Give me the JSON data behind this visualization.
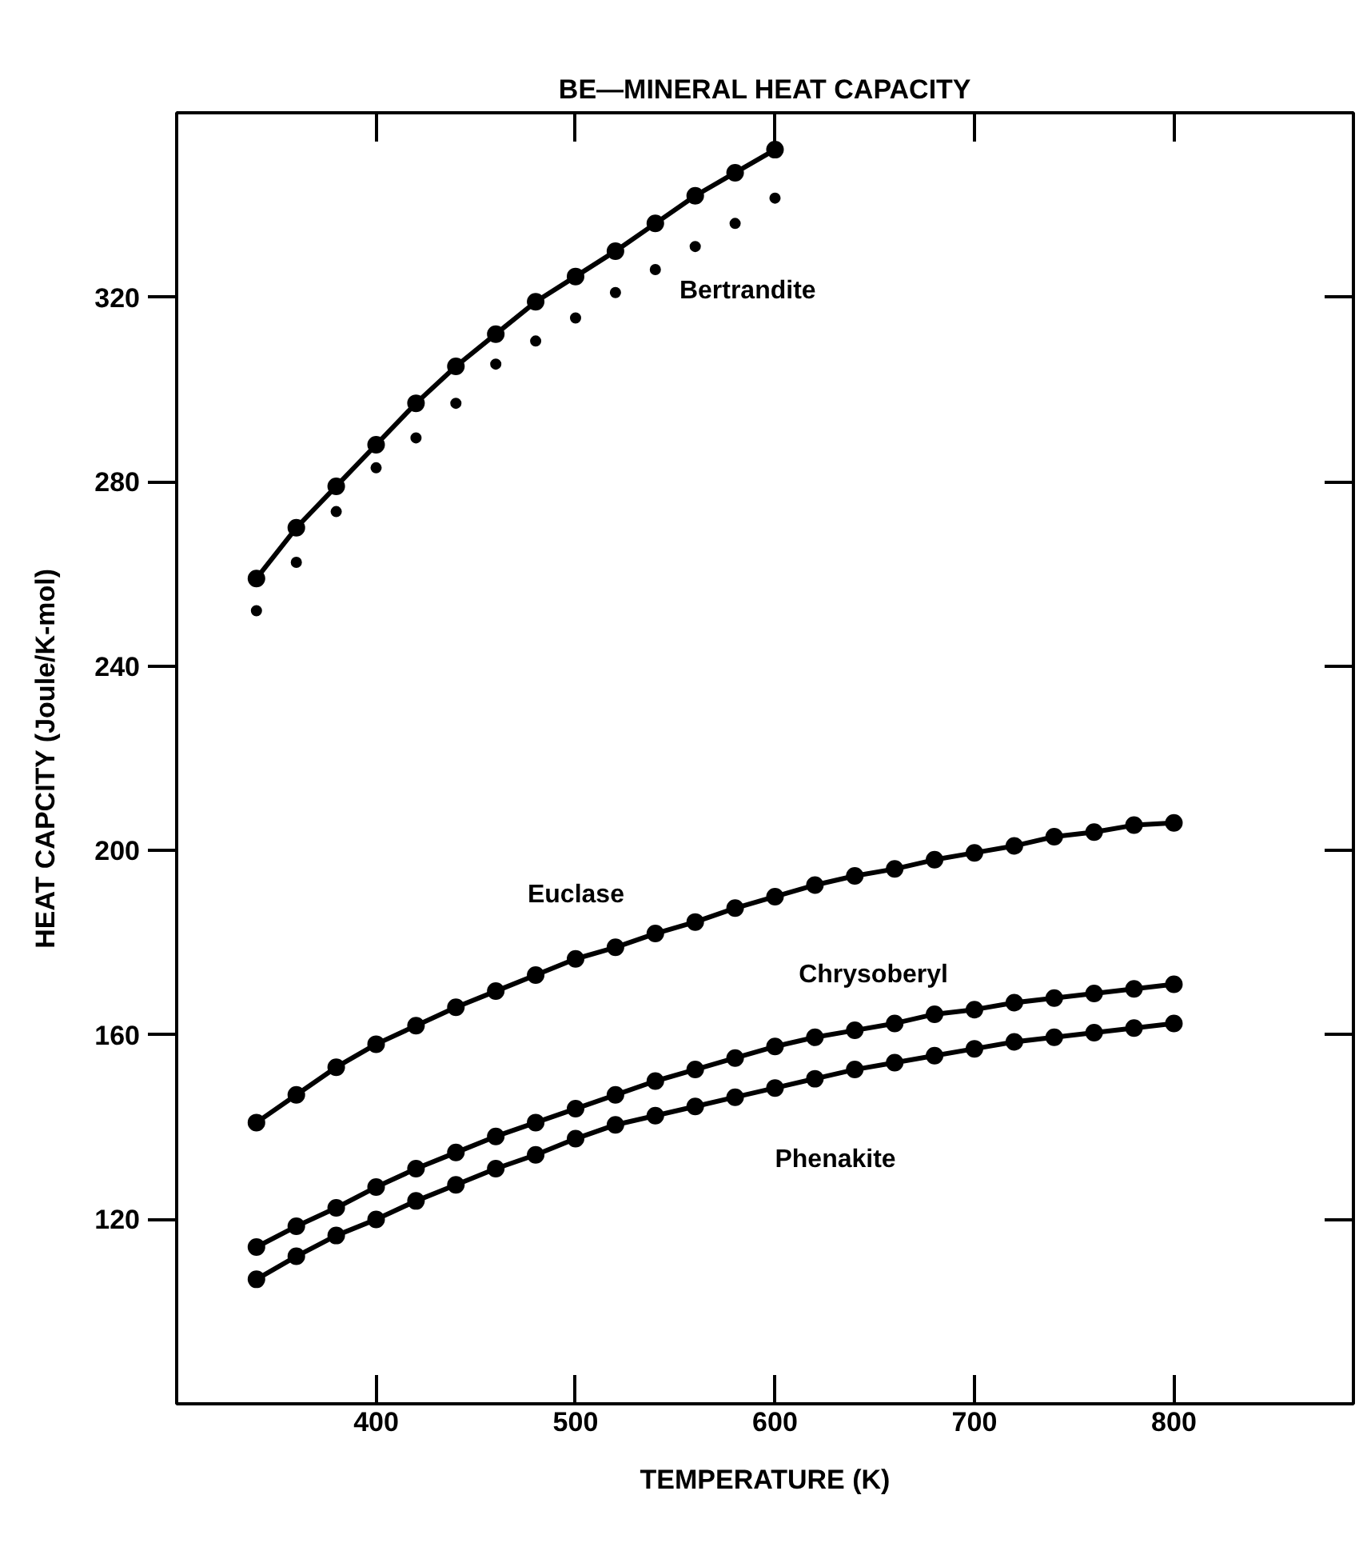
{
  "chart_data": {
    "type": "line",
    "title": "BE—MINERAL HEAT CAPACITY",
    "xlabel": "TEMPERATURE (K)",
    "ylabel": "HEAT CAPCITY (Joule/K-mol)",
    "x": [
      340,
      360,
      380,
      400,
      420,
      440,
      460,
      480,
      500,
      520,
      540,
      560,
      580,
      600,
      620,
      640,
      660,
      680,
      700,
      720,
      740,
      760,
      780,
      800
    ],
    "series": [
      {
        "name": "Bertrandite",
        "color": "#000000",
        "x": [
          340,
          360,
          380,
          400,
          420,
          440,
          460,
          480,
          500,
          520,
          540,
          560,
          580,
          600
        ],
        "values": [
          259,
          270,
          279,
          288,
          297,
          305,
          312,
          319,
          324.5,
          330,
          336,
          342,
          347,
          352
        ]
      },
      {
        "type": "scatter",
        "color": "#000000",
        "x": [
          340,
          360,
          380,
          400,
          420,
          440,
          460,
          480,
          500,
          520,
          540,
          560,
          580,
          600
        ],
        "values": [
          252,
          262.5,
          273.5,
          283,
          289.5,
          297,
          305.5,
          310.5,
          315.5,
          321,
          326,
          331,
          336,
          341.5
        ]
      },
      {
        "name": "Euclase",
        "color": "#000000",
        "values": [
          141,
          147,
          153,
          158,
          162,
          166,
          169.5,
          173,
          176.5,
          179,
          182,
          184.5,
          187.5,
          190,
          192.5,
          194.5,
          196,
          198,
          199.5,
          201,
          203,
          204,
          205.5,
          206
        ]
      },
      {
        "name": "Chrysoberyl",
        "color": "#000000",
        "values": [
          114,
          118.5,
          122.5,
          127,
          131,
          134.5,
          138,
          141,
          144,
          147,
          150,
          152.5,
          155,
          157.5,
          159.5,
          161,
          162.5,
          164.5,
          165.5,
          167,
          168,
          169,
          170,
          171
        ]
      },
      {
        "name": "Phenakite",
        "color": "#000000",
        "values": [
          107,
          112,
          116.5,
          120,
          124,
          127.5,
          131,
          134,
          137.5,
          140.5,
          142.5,
          144.5,
          146.5,
          148.5,
          150.5,
          152.5,
          154,
          155.5,
          157,
          158.5,
          159.5,
          160.5,
          161.5,
          162.5
        ]
      }
    ],
    "xlim": [
      300,
      890
    ],
    "ylim": [
      80,
      360
    ],
    "xticks": [
      400,
      500,
      600,
      700,
      800
    ],
    "yticks": [
      120,
      160,
      200,
      240,
      280,
      320
    ],
    "marker": "circle",
    "line_style": "solid",
    "grid": false
  }
}
